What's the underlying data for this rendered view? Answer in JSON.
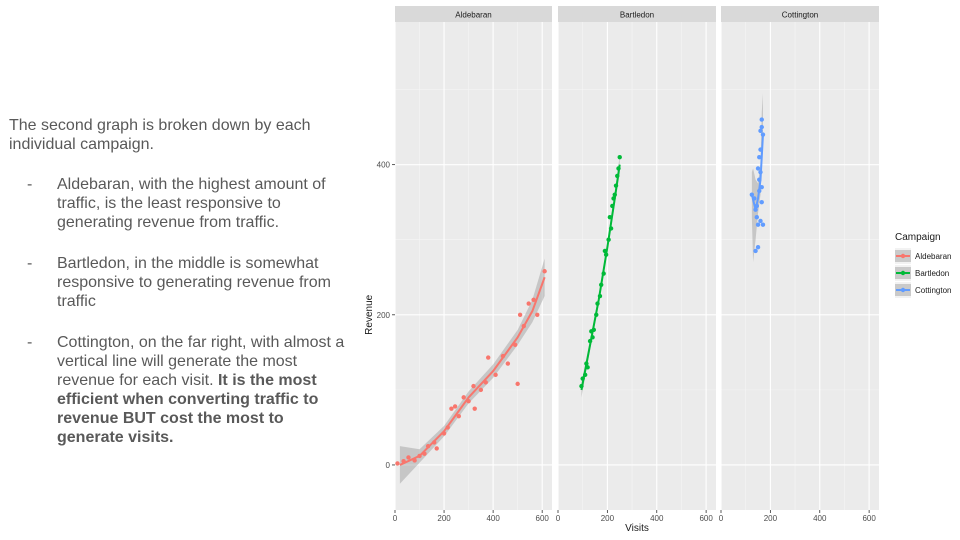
{
  "text": {
    "intro": "The second graph is broken down by each individual campaign.",
    "bullets": [
      {
        "dash": "-",
        "text": "Aldebaran, with the highest amount of traffic, is the least responsive to generating revenue from traffic.",
        "bold": ""
      },
      {
        "dash": "-",
        "text": "Bartledon, in the middle is somewhat responsive to generating revenue from traffic",
        "bold": ""
      },
      {
        "dash": "-",
        "text": "Cottington, on the far right,  with almost a vertical line will generate the most revenue for each visit. ",
        "bold": "It is the most efficient when converting traffic to revenue BUT cost the most to generate visits."
      }
    ]
  },
  "chart_data": {
    "type": "scatter",
    "title": "",
    "xlabel": "Visits",
    "ylabel": "Revenue",
    "xlim": [
      0,
      640
    ],
    "ylim": [
      -60,
      590
    ],
    "xticks": [
      0,
      200,
      400,
      600
    ],
    "yticks": [
      0,
      200,
      400
    ],
    "grid": true,
    "legend": {
      "title": "Campaign",
      "position": "right"
    },
    "facets": [
      {
        "name": "Aldebaran",
        "color": "#F8766D",
        "points": [
          [
            10,
            2
          ],
          [
            35,
            5
          ],
          [
            55,
            10
          ],
          [
            80,
            6
          ],
          [
            100,
            12
          ],
          [
            120,
            15
          ],
          [
            135,
            25
          ],
          [
            160,
            30
          ],
          [
            170,
            22
          ],
          [
            200,
            42
          ],
          [
            215,
            50
          ],
          [
            230,
            75
          ],
          [
            245,
            78
          ],
          [
            260,
            65
          ],
          [
            280,
            90
          ],
          [
            300,
            85
          ],
          [
            320,
            105
          ],
          [
            325,
            75
          ],
          [
            350,
            100
          ],
          [
            370,
            110
          ],
          [
            380,
            143
          ],
          [
            410,
            120
          ],
          [
            440,
            145
          ],
          [
            460,
            135
          ],
          [
            490,
            160
          ],
          [
            500,
            108
          ],
          [
            510,
            200
          ],
          [
            525,
            185
          ],
          [
            545,
            215
          ],
          [
            565,
            220
          ],
          [
            580,
            200
          ],
          [
            610,
            258
          ]
        ],
        "smooth": [
          [
            20,
            0
          ],
          [
            100,
            12
          ],
          [
            200,
            45
          ],
          [
            300,
            90
          ],
          [
            400,
            125
          ],
          [
            500,
            170
          ],
          [
            560,
            205
          ],
          [
            610,
            250
          ]
        ],
        "band": [
          [
            20,
            -25,
            25
          ],
          [
            100,
            3,
            21
          ],
          [
            200,
            38,
            52
          ],
          [
            300,
            82,
            98
          ],
          [
            400,
            116,
            134
          ],
          [
            500,
            160,
            180
          ],
          [
            560,
            190,
            220
          ],
          [
            610,
            225,
            275
          ]
        ]
      },
      {
        "name": "Bartledon",
        "color": "#00BA38",
        "points": [
          [
            95,
            105
          ],
          [
            100,
            115
          ],
          [
            110,
            120
          ],
          [
            115,
            135
          ],
          [
            120,
            130
          ],
          [
            130,
            165
          ],
          [
            135,
            178
          ],
          [
            140,
            170
          ],
          [
            145,
            180
          ],
          [
            155,
            200
          ],
          [
            160,
            215
          ],
          [
            170,
            225
          ],
          [
            175,
            240
          ],
          [
            185,
            255
          ],
          [
            190,
            285
          ],
          [
            195,
            280
          ],
          [
            205,
            300
          ],
          [
            210,
            330
          ],
          [
            215,
            315
          ],
          [
            220,
            345
          ],
          [
            225,
            355
          ],
          [
            230,
            360
          ],
          [
            235,
            372
          ],
          [
            240,
            385
          ],
          [
            245,
            395
          ],
          [
            250,
            410
          ]
        ],
        "smooth": [
          [
            95,
            100
          ],
          [
            130,
            160
          ],
          [
            165,
            220
          ],
          [
            200,
            290
          ],
          [
            230,
            355
          ],
          [
            250,
            400
          ]
        ],
        "band": [
          [
            95,
            90,
            110
          ],
          [
            130,
            153,
            167
          ],
          [
            165,
            214,
            226
          ],
          [
            200,
            284,
            296
          ],
          [
            230,
            347,
            363
          ],
          [
            250,
            388,
            412
          ]
        ]
      },
      {
        "name": "Cottington",
        "color": "#619CFF",
        "points": [
          [
            125,
            360
          ],
          [
            135,
            355
          ],
          [
            140,
            340
          ],
          [
            145,
            330
          ],
          [
            150,
            320
          ],
          [
            150,
            395
          ],
          [
            155,
            380
          ],
          [
            155,
            410
          ],
          [
            160,
            420
          ],
          [
            160,
            445
          ],
          [
            165,
            460
          ],
          [
            165,
            450
          ],
          [
            165,
            370
          ],
          [
            165,
            350
          ],
          [
            170,
            440
          ],
          [
            150,
            290
          ],
          [
            140,
            285
          ],
          [
            160,
            325
          ],
          [
            170,
            320
          ],
          [
            145,
            345
          ],
          [
            155,
            365
          ],
          [
            160,
            390
          ]
        ],
        "smooth": [
          [
            125,
            360
          ],
          [
            140,
            340
          ],
          [
            150,
            355
          ],
          [
            160,
            380
          ],
          [
            170,
            440
          ]
        ],
        "band": [
          [
            125,
            330,
            390
          ],
          [
            130,
            270,
            395
          ],
          [
            140,
            300,
            380
          ],
          [
            150,
            335,
            375
          ],
          [
            160,
            360,
            400
          ],
          [
            165,
            400,
            470
          ],
          [
            170,
            420,
            495
          ]
        ]
      }
    ]
  }
}
